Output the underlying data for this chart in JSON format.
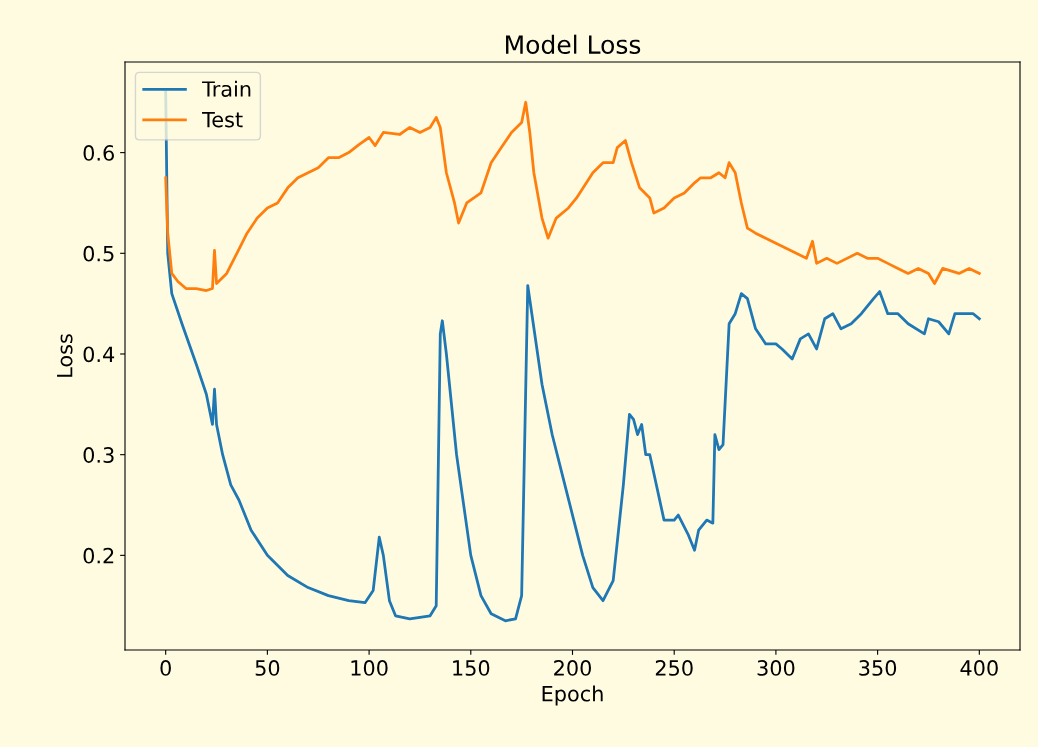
{
  "chart_data": {
    "type": "line",
    "title": "Model Loss",
    "xlabel": "Epoch",
    "ylabel": "Loss",
    "xlim": [
      -20,
      420
    ],
    "xticks": [
      0,
      50,
      100,
      150,
      200,
      250,
      300,
      350,
      400
    ],
    "ylim": [
      0.106,
      0.69
    ],
    "yticks": [
      0.2,
      0.3,
      0.4,
      0.5,
      0.6
    ],
    "grid": false,
    "legend": "top left",
    "marker": "none",
    "line_style": "solid",
    "series": [
      {
        "name": "Train",
        "color": "#1f77b4",
        "x": [
          0,
          1,
          3,
          8,
          15,
          20,
          23,
          24,
          25,
          28,
          32,
          36,
          42,
          50,
          60,
          70,
          80,
          90,
          98,
          102,
          105,
          107,
          110,
          113,
          120,
          130,
          133,
          135,
          136,
          138,
          143,
          150,
          155,
          160,
          167,
          172,
          175,
          178,
          180,
          185,
          190,
          195,
          200,
          205,
          210,
          215,
          220,
          225,
          228,
          230,
          232,
          234,
          236,
          238,
          245,
          250,
          252,
          257,
          260,
          262,
          266,
          269,
          270,
          272,
          274,
          277,
          280,
          283,
          286,
          290,
          295,
          300,
          303,
          308,
          312,
          316,
          320,
          324,
          328,
          332,
          337,
          342,
          348,
          351,
          355,
          360,
          365,
          373,
          375,
          380,
          385,
          388,
          393,
          397,
          400
        ],
        "values": [
          0.66,
          0.5,
          0.46,
          0.43,
          0.39,
          0.36,
          0.33,
          0.365,
          0.33,
          0.3,
          0.27,
          0.255,
          0.225,
          0.2,
          0.18,
          0.168,
          0.16,
          0.155,
          0.153,
          0.165,
          0.218,
          0.2,
          0.155,
          0.14,
          0.137,
          0.14,
          0.15,
          0.42,
          0.433,
          0.4,
          0.3,
          0.2,
          0.16,
          0.142,
          0.135,
          0.137,
          0.16,
          0.468,
          0.44,
          0.37,
          0.32,
          0.28,
          0.24,
          0.2,
          0.168,
          0.155,
          0.175,
          0.27,
          0.34,
          0.335,
          0.32,
          0.33,
          0.3,
          0.3,
          0.235,
          0.235,
          0.24,
          0.22,
          0.205,
          0.225,
          0.235,
          0.232,
          0.32,
          0.305,
          0.31,
          0.43,
          0.44,
          0.46,
          0.455,
          0.425,
          0.41,
          0.41,
          0.405,
          0.395,
          0.415,
          0.42,
          0.405,
          0.435,
          0.44,
          0.425,
          0.43,
          0.44,
          0.455,
          0.462,
          0.44,
          0.44,
          0.43,
          0.42,
          0.435,
          0.432,
          0.42,
          0.44,
          0.44,
          0.44,
          0.435
        ]
      },
      {
        "name": "Test",
        "color": "#ff7f0e",
        "x": [
          0,
          1,
          3,
          6,
          10,
          15,
          20,
          23,
          24,
          25,
          30,
          35,
          40,
          45,
          50,
          55,
          60,
          65,
          70,
          75,
          80,
          85,
          90,
          95,
          100,
          103,
          107,
          115,
          120,
          125,
          130,
          133,
          135,
          138,
          142,
          144,
          148,
          155,
          160,
          165,
          170,
          175,
          177,
          179,
          181,
          185,
          188,
          192,
          198,
          202,
          210,
          215,
          220,
          222,
          226,
          229,
          233,
          238,
          240,
          245,
          250,
          255,
          260,
          263,
          268,
          272,
          275,
          277,
          280,
          283,
          286,
          290,
          295,
          300,
          305,
          310,
          315,
          318,
          320,
          325,
          330,
          340,
          345,
          350,
          355,
          360,
          365,
          370,
          375,
          378,
          382,
          390,
          395,
          400
        ],
        "values": [
          0.575,
          0.52,
          0.48,
          0.472,
          0.465,
          0.465,
          0.463,
          0.465,
          0.503,
          0.47,
          0.48,
          0.5,
          0.52,
          0.535,
          0.545,
          0.55,
          0.565,
          0.575,
          0.58,
          0.585,
          0.595,
          0.595,
          0.6,
          0.608,
          0.615,
          0.607,
          0.62,
          0.618,
          0.625,
          0.62,
          0.625,
          0.635,
          0.625,
          0.58,
          0.55,
          0.53,
          0.55,
          0.56,
          0.59,
          0.605,
          0.62,
          0.63,
          0.65,
          0.62,
          0.58,
          0.535,
          0.515,
          0.535,
          0.545,
          0.555,
          0.58,
          0.59,
          0.59,
          0.605,
          0.612,
          0.59,
          0.565,
          0.555,
          0.54,
          0.545,
          0.555,
          0.56,
          0.57,
          0.575,
          0.575,
          0.58,
          0.575,
          0.59,
          0.58,
          0.55,
          0.525,
          0.52,
          0.515,
          0.51,
          0.505,
          0.5,
          0.495,
          0.512,
          0.49,
          0.495,
          0.49,
          0.5,
          0.495,
          0.495,
          0.49,
          0.485,
          0.48,
          0.485,
          0.48,
          0.47,
          0.485,
          0.48,
          0.485,
          0.48
        ]
      }
    ]
  }
}
